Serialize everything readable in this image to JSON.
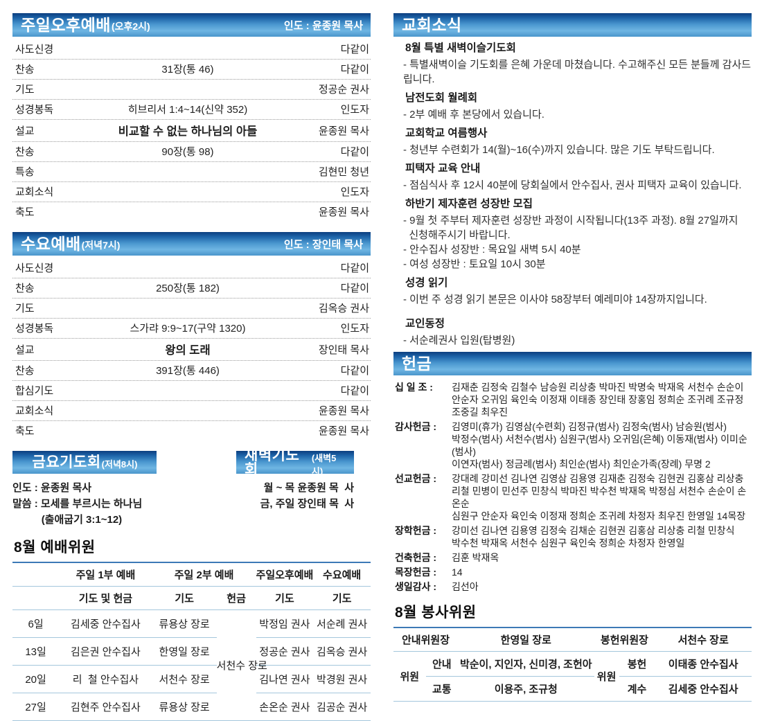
{
  "colors": {
    "header_bar_dark": "#0c3e7f",
    "header_bar_light": "#6fb6e3",
    "table_top_line": "#3c79b6",
    "table_inner_line": "#a3c6dc",
    "dotted_separator": "#999999"
  },
  "left": {
    "services": [
      {
        "title": "주일오후예배",
        "time": "(오후2시)",
        "leader": "인도 : 윤종원 목사",
        "rows": [
          {
            "label": "사도신경",
            "center": "",
            "right": "다같이"
          },
          {
            "label": "찬송",
            "center": "31장(통 46)",
            "right": "다같이"
          },
          {
            "label": "기도",
            "center": "",
            "right": "정공순 권사"
          },
          {
            "label": "성경봉독",
            "center": "히브리서 1:4~14(신약 352)",
            "right": "인도자"
          },
          {
            "label": "설교",
            "center": "비교할 수 없는 하나님의 아들",
            "right": "윤종원 목사",
            "bold_center": true
          },
          {
            "label": "찬송",
            "center": "90장(통 98)",
            "right": "다같이"
          },
          {
            "label": "특송",
            "center": "",
            "right": "김현민 청년"
          },
          {
            "label": "교회소식",
            "center": "",
            "right": "인도자"
          },
          {
            "label": "축도",
            "center": "",
            "right": "윤종원 목사"
          }
        ]
      },
      {
        "title": "수요예배",
        "time": "(저녁7시)",
        "leader": "인도 : 장인태 목사",
        "rows": [
          {
            "label": "사도신경",
            "center": "",
            "right": "다같이"
          },
          {
            "label": "찬송",
            "center": "250장(통 182)",
            "right": "다같이"
          },
          {
            "label": "기도",
            "center": "",
            "right": "김옥승 권사"
          },
          {
            "label": "성경봉독",
            "center": "스가랴 9:9~17(구약 1320)",
            "right": "인도자"
          },
          {
            "label": "설교",
            "center": "왕의 도래",
            "right": "장인태 목사",
            "bold_center": true
          },
          {
            "label": "찬송",
            "center": "391장(통 446)",
            "right": "다같이"
          },
          {
            "label": "합심기도",
            "center": "",
            "right": "다같이"
          },
          {
            "label": "교회소식",
            "center": "",
            "right": "윤종원 목사"
          },
          {
            "label": "축도",
            "center": "",
            "right": "윤종원 목사"
          }
        ]
      }
    ],
    "friday": {
      "title": "금요기도회",
      "time": "(저녁8시)",
      "lines": [
        "인도 : 윤종원 목사",
        "말씀 : 모세를 부르시는 하나님",
        "          (출애굽기 3:1~12)"
      ]
    },
    "dawn": {
      "title": "새벽기도회",
      "time": "(새벽5시)",
      "lines": [
        "월 ~ 목 윤종원 목  사",
        "금, 주일 장인태 목  사"
      ]
    },
    "committee": {
      "title": "8월 예배위원",
      "group_headers": [
        "주일 1부 예배",
        "주일 2부 예배",
        "주일오후예배",
        "수요예배"
      ],
      "sub_headers": [
        "기도 및 헌금",
        "기도",
        "헌금",
        "기도",
        "기도"
      ],
      "merged_cell": "서천수 장로",
      "rows": [
        {
          "date": "6일",
          "c1": "김세중 안수집사",
          "c2": "류용상 장로",
          "c4": "박정임 권사",
          "c5": "서순례 권사"
        },
        {
          "date": "13일",
          "c1": "김은권 안수집사",
          "c2": "한영일 장로",
          "c4": "정공순 권사",
          "c5": "김옥승 권사"
        },
        {
          "date": "20일",
          "c1": "리  철 안수집사",
          "c2": "서천수 장로",
          "c4": "김나연 권사",
          "c5": "박경원 권사"
        },
        {
          "date": "27일",
          "c1": "김현주 안수집사",
          "c2": "류용상 장로",
          "c4": "손온순 권사",
          "c5": "김공순 권사"
        }
      ]
    }
  },
  "right": {
    "news": {
      "title": "교회소식",
      "items": [
        {
          "heading": "8월 특별 새벽이슬기도회",
          "lines": [
            "- 특별새벽이슬 기도회를 은혜 가운데 마쳤습니다. 수고해주신 모든 분들께 감사드립니다."
          ]
        },
        {
          "heading": "남전도회 월례회",
          "lines": [
            "- 2부 예배 후 본당에서 있습니다."
          ]
        },
        {
          "heading": "교회학교 여름행사",
          "lines": [
            "- 청년부 수련회가 14(월)~16(수)까지 있습니다. 많은 기도 부탁드립니다."
          ]
        },
        {
          "heading": "피택자 교육 안내",
          "lines": [
            "- 점심식사 후 12시 40분에 당회실에서 안수집사, 권사 피택자 교육이 있습니다."
          ]
        },
        {
          "heading": "하반기 제자훈련 성장반 모집",
          "lines": [
            "- 9월 첫 주부터 제자훈련 성장반 과정이 시작됩니다(13주 과정). 8월 27일까지",
            "  신청해주시기 바랍니다.",
            "- 안수집사 성장반 : 목요일 새벽 5시 40분",
            "- 여성 성장반 : 토요일 10시 30분"
          ]
        },
        {
          "heading": "성경 읽기",
          "lines": [
            "- 이번 주 성경 읽기 본문은 이사야 58장부터 예레미야 14장까지입니다."
          ]
        },
        {
          "heading": "교인동정",
          "extra_gap": true,
          "lines": [
            "- 서순례권사 입원(탑병원)"
          ]
        }
      ]
    },
    "offering": {
      "title": "헌금",
      "entries": [
        {
          "label": "십 일 조 :",
          "lines": [
            "김재춘 김정숙 김철수 남승원 리상충 박마진 박명숙 박재옥 서천수 손순이",
            "안순자 오귀임 육인숙 이정재 이태종 장인태 장홍임 정희순 조귀례 조규정",
            "조중길 최우진"
          ]
        },
        {
          "label": "감사헌금 :",
          "lines": [
            "김영미(휴가) 김영삼(수련회) 김정규(범사) 김정숙(범사) 남승원(범사)",
            "박정수(범사) 서천수(범사) 심원구(범사) 오귀임(은혜) 이동재(범사) 이미순(범사)",
            "이연자(범사) 정금례(범사) 최인순(범사) 최인순가족(장례) 무명 2"
          ]
        },
        {
          "label": "선교헌금 :",
          "lines": [
            "강대례 강미선 김나연 김영삼 김용영 김재춘 김정숙 김현권 김홍삼 리상충",
            "리철 민병이 민선주 민창식 박마진 박수천 박재옥 박정심 서천수 손순이 손온순",
            "심원구 안순자 육인숙 이정재 정희순 조귀례 차정자 최우진 한영일 14목장"
          ]
        },
        {
          "label": "장학헌금 :",
          "lines": [
            "강미선 김나연 김용영 김정숙 김채순 김현권 김홍삼 리상충 리철 민창식",
            "박수천 박재옥 서천수 심원구 육인숙 정희순 차정자 한영일"
          ]
        },
        {
          "label": "건축헌금 :",
          "lines": [
            "김훈 박재옥"
          ]
        },
        {
          "label": "목장헌금 :",
          "lines": [
            "14"
          ]
        },
        {
          "label": "생일감사 :",
          "lines": [
            "김선아"
          ]
        }
      ]
    },
    "service_committee": {
      "title": "8월 봉사위원",
      "left_chair_label": "안내위원장",
      "left_chair": "한영일 장로",
      "right_chair_label": "봉헌위원장",
      "right_chair": "서천수 장로",
      "left_member_label": "위원",
      "right_member_label": "위원",
      "left_rows": [
        {
          "role": "안내",
          "names": "박순이, 지인자, 신미경, 조헌아"
        },
        {
          "role": "교통",
          "names": "이용주, 조규청"
        }
      ],
      "right_rows": [
        {
          "role": "봉헌",
          "names": "이태종 안수집사"
        },
        {
          "role": "계수",
          "names": "김세중 안수집사"
        }
      ]
    }
  }
}
